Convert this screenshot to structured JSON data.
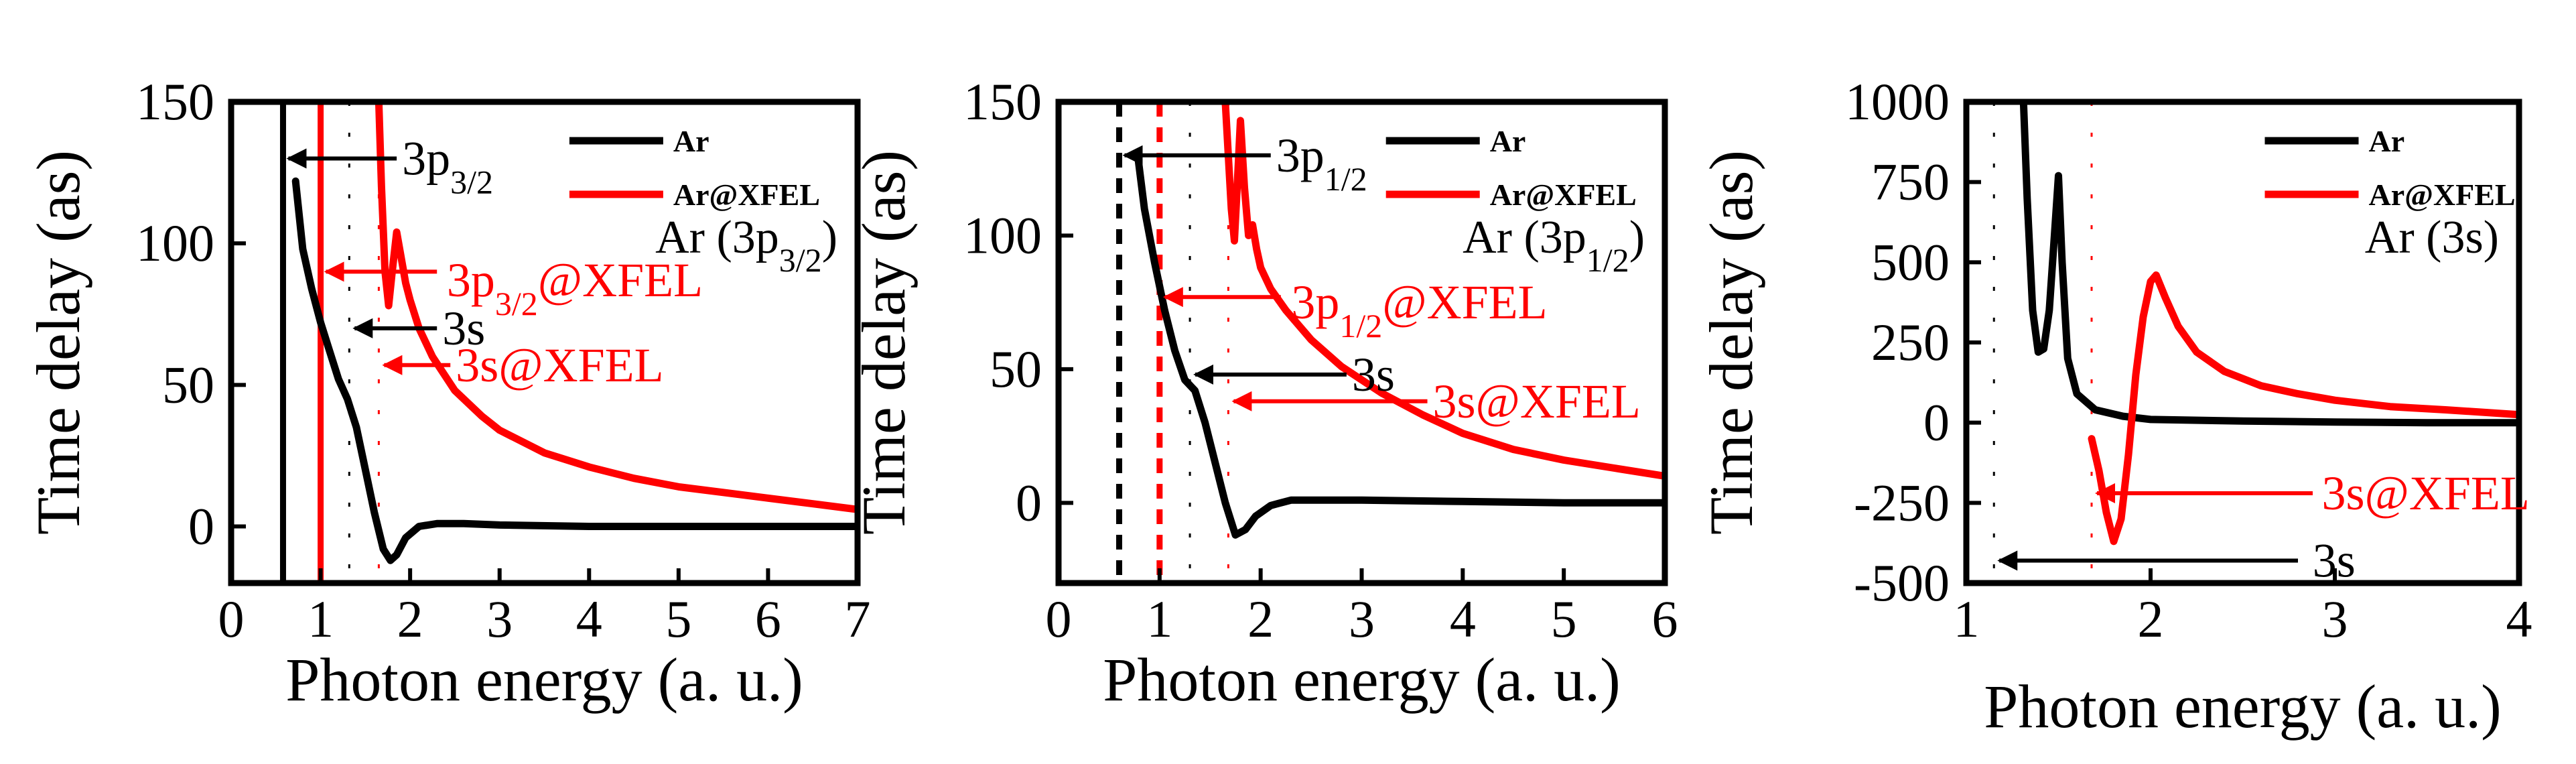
{
  "chart_data": [
    {
      "type": "line",
      "id": "panel-3p32",
      "xlabel": "Photon energy (a. u.)",
      "ylabel": "Time delay (as)",
      "xlim": [
        0,
        7
      ],
      "ylim": [
        -20,
        150
      ],
      "xticks": [
        0,
        1,
        2,
        3,
        4,
        5,
        6,
        7
      ],
      "yticks": [
        0,
        50,
        100,
        150
      ],
      "panel_label": "Ar (3p",
      "panel_label_sub": "3/2",
      "panel_label_end": ")",
      "legend": [
        "Ar",
        "Ar@XFEL"
      ],
      "series": [
        {
          "name": "Ar",
          "color": "#000000",
          "x": [
            0.72,
            0.8,
            0.9,
            1.0,
            1.1,
            1.2,
            1.3,
            1.4,
            1.5,
            1.6,
            1.7,
            1.78,
            1.85,
            1.95,
            2.1,
            2.3,
            2.6,
            3.0,
            4.0,
            5.0,
            6.0,
            7.0
          ],
          "y": [
            122,
            98,
            84,
            72,
            62,
            52,
            45,
            35,
            20,
            5,
            -8,
            -12,
            -10,
            -4,
            0,
            1,
            1,
            0.5,
            0,
            0,
            0,
            0
          ]
        },
        {
          "name": "Ar@XFEL",
          "color": "#ff0000",
          "x": [
            1.65,
            1.68,
            1.72,
            1.76,
            1.8,
            1.85,
            1.9,
            1.95,
            2.0,
            2.1,
            2.25,
            2.5,
            2.8,
            3.0,
            3.5,
            4.0,
            4.5,
            5.0,
            5.5,
            6.0,
            6.5,
            7.0
          ],
          "y": [
            150,
            120,
            90,
            78,
            90,
            104,
            95,
            86,
            80,
            70,
            60,
            48,
            39,
            34,
            26,
            21,
            17,
            14,
            12,
            10,
            8,
            6
          ]
        }
      ],
      "vlines": [
        {
          "x": 0.58,
          "color": "#000000",
          "style": "solid"
        },
        {
          "x": 1.0,
          "color": "#ff0000",
          "style": "solid"
        },
        {
          "x": 1.32,
          "color": "#000000",
          "style": "dotted"
        },
        {
          "x": 1.65,
          "color": "#ff0000",
          "style": "dotted"
        }
      ],
      "annotations": [
        {
          "text": "3p",
          "sub": "3/2",
          "suffix": "",
          "color": "#000000",
          "arrow_from": [
            1.85,
            130
          ],
          "arrow_to": [
            0.58,
            130
          ],
          "text_at": [
            1.85,
            130
          ]
        },
        {
          "text": "3p",
          "sub": "3/2",
          "suffix": "@XFEL",
          "color": "#ff0000",
          "arrow_from": [
            2.3,
            90
          ],
          "arrow_to": [
            1.0,
            90
          ],
          "text_at": [
            2.35,
            87
          ]
        },
        {
          "text": "3s",
          "sub": "",
          "suffix": "",
          "color": "#000000",
          "arrow_from": [
            2.3,
            70
          ],
          "arrow_to": [
            1.32,
            70
          ],
          "text_at": [
            2.3,
            70
          ]
        },
        {
          "text": "3s@XFEL",
          "sub": "",
          "suffix": "",
          "color": "#ff0000",
          "arrow_from": [
            2.45,
            57
          ],
          "arrow_to": [
            1.65,
            57
          ],
          "text_at": [
            2.45,
            57
          ]
        }
      ]
    },
    {
      "type": "line",
      "id": "panel-3p12",
      "xlabel": "Photon energy (a. u.)",
      "ylabel": "Time delay (as)",
      "xlim": [
        0,
        6
      ],
      "ylim": [
        -30,
        150
      ],
      "xticks": [
        0,
        1,
        2,
        3,
        4,
        5,
        6
      ],
      "yticks": [
        0,
        50,
        100,
        150
      ],
      "panel_label": "Ar (3p",
      "panel_label_sub": "1/2",
      "panel_label_end": ")",
      "legend": [
        "Ar",
        "Ar@XFEL"
      ],
      "series": [
        {
          "name": "Ar",
          "color": "#000000",
          "x": [
            0.78,
            0.85,
            0.95,
            1.05,
            1.15,
            1.25,
            1.35,
            1.45,
            1.55,
            1.65,
            1.75,
            1.85,
            1.95,
            2.1,
            2.3,
            2.6,
            3.0,
            4.0,
            5.0,
            6.0
          ],
          "y": [
            131,
            110,
            90,
            72,
            57,
            46,
            42,
            30,
            15,
            0,
            -12,
            -10,
            -5,
            -1,
            1,
            1,
            1,
            0.5,
            0,
            0
          ]
        },
        {
          "name": "Ar@XFEL",
          "color": "#ff0000",
          "x": [
            1.65,
            1.68,
            1.71,
            1.74,
            1.77,
            1.8,
            1.84,
            1.88,
            1.92,
            1.96,
            2.0,
            2.1,
            2.25,
            2.5,
            2.8,
            3.2,
            3.6,
            4.0,
            4.5,
            5.0,
            5.5,
            6.0
          ],
          "y": [
            150,
            130,
            110,
            98,
            120,
            143,
            118,
            100,
            104,
            95,
            88,
            80,
            72,
            61,
            51,
            41,
            33,
            26,
            20,
            16,
            13,
            10
          ]
        }
      ],
      "vlines": [
        {
          "x": 0.6,
          "color": "#000000",
          "style": "dashed"
        },
        {
          "x": 1.0,
          "color": "#ff0000",
          "style": "dashed"
        },
        {
          "x": 1.3,
          "color": "#000000",
          "style": "dotted"
        },
        {
          "x": 1.68,
          "color": "#ff0000",
          "style": "dotted"
        }
      ],
      "annotations": [
        {
          "text": "3p",
          "sub": "1/2",
          "suffix": "",
          "color": "#000000",
          "arrow_from": [
            2.1,
            130
          ],
          "arrow_to": [
            0.6,
            130
          ],
          "text_at": [
            2.1,
            130
          ]
        },
        {
          "text": "3p",
          "sub": "1/2",
          "suffix": "@XFEL",
          "color": "#ff0000",
          "arrow_from": [
            2.2,
            77
          ],
          "arrow_to": [
            1.0,
            77
          ],
          "text_at": [
            2.25,
            75
          ]
        },
        {
          "text": "3s",
          "sub": "",
          "suffix": "",
          "color": "#000000",
          "arrow_from": [
            2.85,
            48
          ],
          "arrow_to": [
            1.3,
            48
          ],
          "text_at": [
            2.85,
            48
          ]
        },
        {
          "text": "3s@XFEL",
          "sub": "",
          "suffix": "",
          "color": "#ff0000",
          "arrow_from": [
            3.65,
            38
          ],
          "arrow_to": [
            1.68,
            38
          ],
          "text_at": [
            3.65,
            38
          ]
        }
      ]
    },
    {
      "type": "line",
      "id": "panel-3s",
      "xlabel": "Photon energy (a. u.)",
      "ylabel": "Time delay (as)",
      "xlim": [
        1,
        4
      ],
      "ylim": [
        -500,
        1000
      ],
      "xticks": [
        1,
        2,
        3,
        4
      ],
      "yticks": [
        -500,
        -250,
        0,
        250,
        500,
        750,
        1000
      ],
      "panel_label": "Ar (3s)",
      "panel_label_sub": "",
      "panel_label_end": "",
      "legend": [
        "Ar",
        "Ar@XFEL"
      ],
      "series": [
        {
          "name": "Ar",
          "color": "#000000",
          "x": [
            1.31,
            1.33,
            1.36,
            1.39,
            1.42,
            1.45,
            1.48,
            1.5,
            1.52,
            1.55,
            1.6,
            1.7,
            1.85,
            2.0,
            2.5,
            3.0,
            3.5,
            4.0
          ],
          "y": [
            1000,
            700,
            350,
            220,
            230,
            350,
            600,
            770,
            500,
            200,
            90,
            40,
            20,
            10,
            5,
            2,
            0,
            0
          ]
        },
        {
          "name": "Ar@XFEL",
          "color": "#ff0000",
          "x": [
            1.68,
            1.72,
            1.76,
            1.8,
            1.84,
            1.88,
            1.92,
            1.96,
            2.0,
            2.03,
            2.08,
            2.15,
            2.25,
            2.4,
            2.6,
            2.8,
            3.0,
            3.3,
            3.6,
            4.0
          ],
          "y": [
            -50,
            -150,
            -280,
            -370,
            -300,
            -100,
            150,
            330,
            440,
            460,
            390,
            300,
            220,
            160,
            115,
            90,
            70,
            50,
            40,
            25
          ]
        }
      ],
      "vlines": [
        {
          "x": 1.15,
          "color": "#000000",
          "style": "dotted"
        },
        {
          "x": 1.68,
          "color": "#ff0000",
          "style": "dotted"
        }
      ],
      "annotations": [
        {
          "text": "3s@XFEL",
          "sub": "",
          "suffix": "",
          "color": "#ff0000",
          "arrow_from": [
            2.88,
            -220
          ],
          "arrow_to": [
            1.68,
            -220
          ],
          "text_at": [
            2.9,
            -220
          ]
        },
        {
          "text": "3s",
          "sub": "",
          "suffix": "",
          "color": "#000000",
          "arrow_from": [
            2.8,
            -430
          ],
          "arrow_to": [
            1.15,
            -430
          ],
          "text_at": [
            2.85,
            -430
          ]
        }
      ]
    }
  ]
}
